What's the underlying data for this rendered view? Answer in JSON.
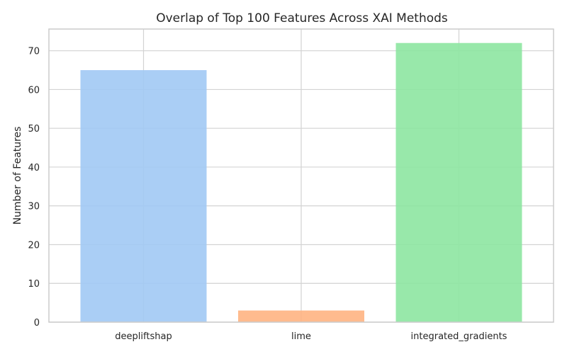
{
  "chart_data": {
    "type": "bar",
    "title": "Overlap of Top 100 Features Across XAI Methods",
    "xlabel": "",
    "ylabel": "Number of Features",
    "categories": [
      "deepliftshap",
      "lime",
      "integrated_gradients"
    ],
    "values": [
      65,
      3,
      72
    ],
    "colors": [
      "#a1c9f4",
      "#ffb482",
      "#8de5a1"
    ],
    "ylim": [
      0,
      75.6
    ],
    "yticks": [
      0,
      10,
      20,
      30,
      40,
      50,
      60,
      70
    ],
    "grid": true,
    "legend": "none"
  }
}
